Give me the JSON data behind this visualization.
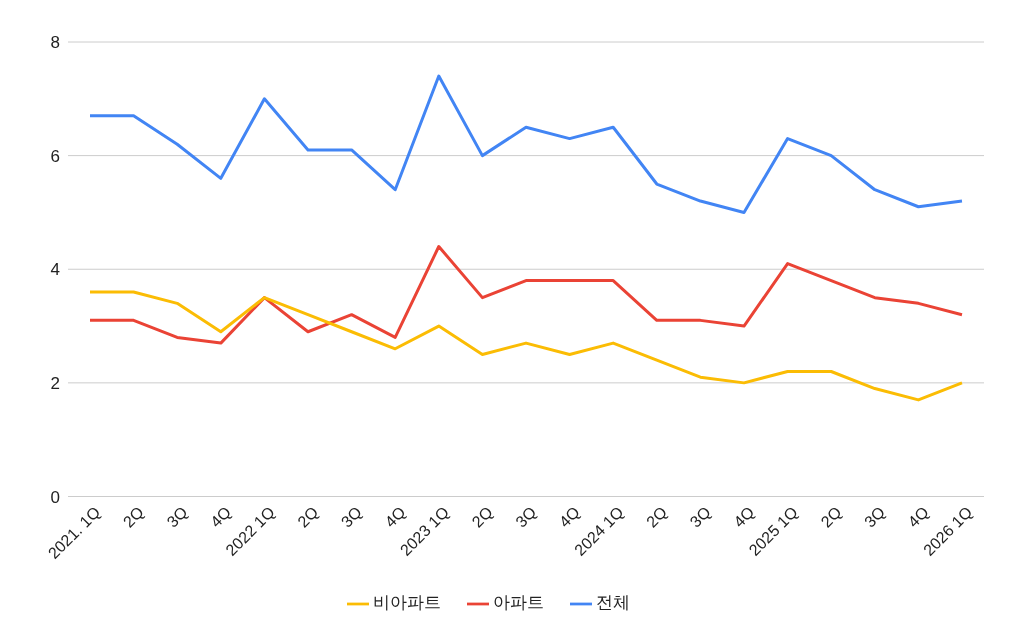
{
  "chart_data": {
    "type": "line",
    "categories": [
      "2021. 1Q",
      "2Q",
      "3Q",
      "4Q",
      "2022 1Q",
      "2Q",
      "3Q",
      "4Q",
      "2023 1Q",
      "2Q",
      "3Q",
      "4Q",
      "2024 1Q",
      "2Q",
      "3Q",
      "4Q",
      "2025 1Q",
      "2Q",
      "3Q",
      "4Q",
      "2026 1Q"
    ],
    "series": [
      {
        "name": "전체",
        "color": "#4285f4",
        "values": [
          6.7,
          6.7,
          6.2,
          5.6,
          7.0,
          6.1,
          6.1,
          5.4,
          7.4,
          6.0,
          6.5,
          6.3,
          6.5,
          5.5,
          5.2,
          5.0,
          6.3,
          6.0,
          5.4,
          5.1,
          5.2
        ]
      },
      {
        "name": "아파트",
        "color": "#ea4335",
        "values": [
          3.1,
          3.1,
          2.8,
          2.7,
          3.5,
          2.9,
          3.2,
          2.8,
          4.4,
          3.5,
          3.8,
          3.8,
          3.8,
          3.1,
          3.1,
          3.0,
          4.1,
          3.8,
          3.5,
          3.4,
          3.2
        ]
      },
      {
        "name": "비아파트",
        "color": "#fbbc04",
        "values": [
          3.6,
          3.6,
          3.4,
          2.9,
          3.5,
          3.2,
          2.9,
          2.6,
          3.0,
          2.5,
          2.7,
          2.5,
          2.7,
          2.4,
          2.1,
          2.0,
          2.2,
          2.2,
          1.9,
          1.7,
          2.0
        ]
      }
    ],
    "ylim": [
      0,
      8
    ],
    "yticks": [
      0,
      2,
      4,
      6,
      8
    ],
    "grid": "y",
    "legend": "bottom",
    "marker": "none",
    "line_style": "solid"
  }
}
